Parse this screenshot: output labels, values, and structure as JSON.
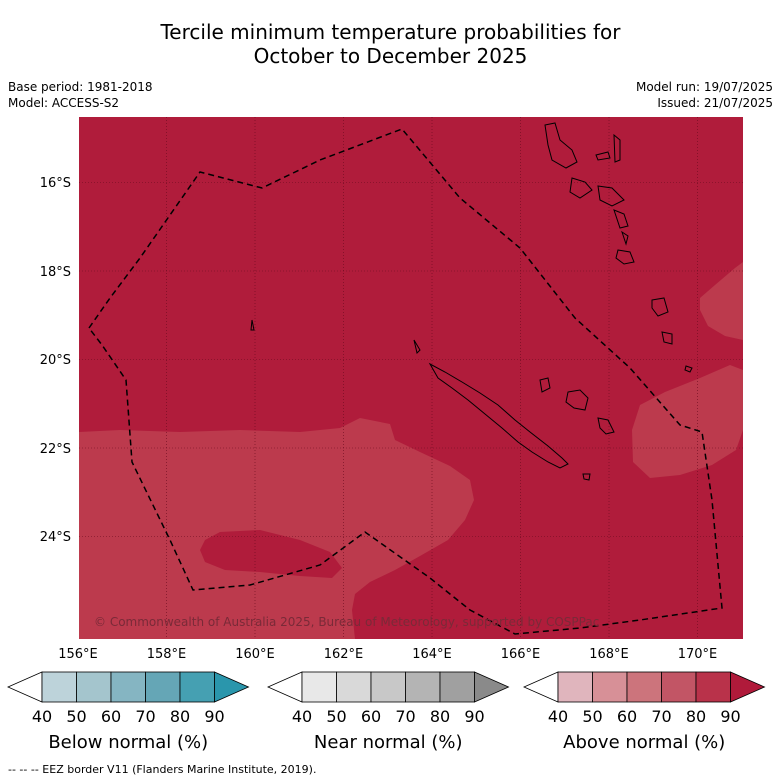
{
  "title_line1": "Tercile minimum temperature probabilities for",
  "title_line2": "October to December 2025",
  "base_period": "Base period: 1981-2018",
  "model": "Model: ACCESS-S2",
  "model_run": "Model run: 19/07/2025",
  "issued": "Issued: 21/07/2025",
  "lat_labels": [
    "16°S",
    "18°S",
    "20°S",
    "22°S",
    "24°S"
  ],
  "lon_labels": [
    "156°E",
    "158°E",
    "160°E",
    "162°E",
    "164°E",
    "166°E",
    "168°E",
    "170°E"
  ],
  "copyright": "© Commonwealth of Australia 2025, Bureau of Meteorology, supported by COSPPac",
  "colorbars": [
    {
      "title": "Below normal (%)",
      "ticks": [
        "40",
        "50",
        "60",
        "70",
        "80",
        "90"
      ],
      "colors": [
        "#ffffff",
        "#bdd3da",
        "#a4c5cd",
        "#85b5c2",
        "#65a6b6",
        "#45a0b2",
        "#2a96ac"
      ]
    },
    {
      "title": "Near normal (%)",
      "ticks": [
        "40",
        "50",
        "60",
        "70",
        "80",
        "90"
      ],
      "colors": [
        "#ffffff",
        "#e8e8e8",
        "#d9d9d9",
        "#c8c8c8",
        "#b4b4b4",
        "#a0a0a0",
        "#8a8a8a"
      ]
    },
    {
      "title": "Above normal (%)",
      "ticks": [
        "40",
        "50",
        "60",
        "70",
        "80",
        "90"
      ],
      "colors": [
        "#ffffff",
        "#e0b5bd",
        "#d79097",
        "#cc747c",
        "#c25565",
        "#b9324a",
        "#b01a3a"
      ]
    }
  ],
  "footer": "--  --  -- EEZ border V11 (Flanders Marine Institute, 2019).",
  "map_colors": {
    "above_90": "#b01c3b",
    "above_80": "#bc3a4d"
  }
}
